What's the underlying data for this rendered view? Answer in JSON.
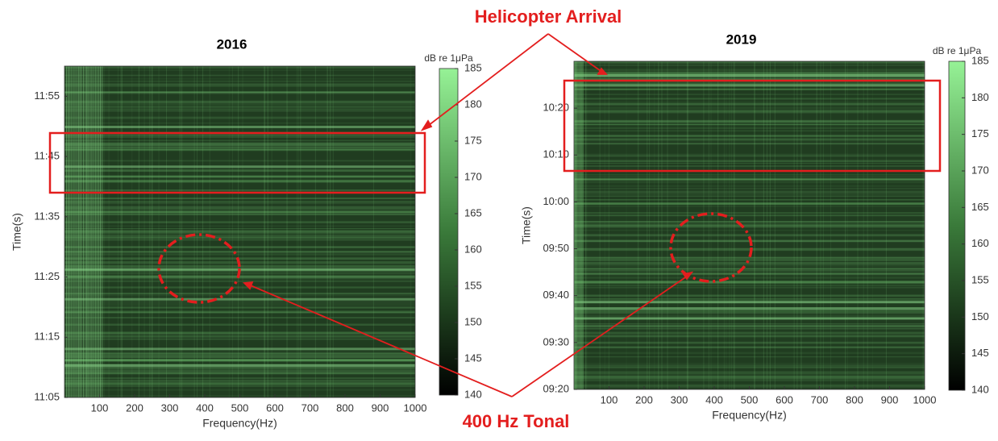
{
  "annotations": [
    "Helicopter Arrival",
    "400 Hz Tonal"
  ],
  "chart_data": [
    {
      "type": "spectrogram",
      "title": "2016",
      "xlabel": "Frequency(Hz)",
      "ylabel": "Time(s)",
      "xlim": [
        0,
        1000
      ],
      "xticks": [
        100,
        200,
        300,
        400,
        500,
        600,
        700,
        800,
        900,
        1000
      ],
      "ylim": [
        665,
        720
      ],
      "yticks": [
        {
          "value": 665,
          "label": "11:05"
        },
        {
          "value": 675,
          "label": "11:15"
        },
        {
          "value": 685,
          "label": "11:25"
        },
        {
          "value": 695,
          "label": "11:35"
        },
        {
          "value": 705,
          "label": "11:45"
        },
        {
          "value": 715,
          "label": "11:55"
        }
      ],
      "colorbar_label": "dB re 1μPa",
      "clim": [
        140,
        185
      ],
      "cticks": [
        140,
        145,
        150,
        155,
        160,
        165,
        170,
        175,
        180,
        185
      ]
    },
    {
      "type": "spectrogram",
      "title": "2019",
      "xlabel": "Frequency(Hz)",
      "ylabel": "Time(s)",
      "xlim": [
        0,
        1000
      ],
      "xticks": [
        100,
        200,
        300,
        400,
        500,
        600,
        700,
        800,
        900,
        1000
      ],
      "ylim": [
        560,
        630
      ],
      "yticks": [
        {
          "value": 560,
          "label": "09:20"
        },
        {
          "value": 570,
          "label": "09:30"
        },
        {
          "value": 580,
          "label": "09:40"
        },
        {
          "value": 590,
          "label": "09:50"
        },
        {
          "value": 600,
          "label": "10:00"
        },
        {
          "value": 610,
          "label": "10:10"
        },
        {
          "value": 620,
          "label": "10:20"
        }
      ],
      "colorbar_label": "dB re 1μPa",
      "clim": [
        140,
        185
      ],
      "cticks": [
        140,
        145,
        150,
        155,
        160,
        165,
        170,
        175,
        180,
        185
      ]
    }
  ]
}
